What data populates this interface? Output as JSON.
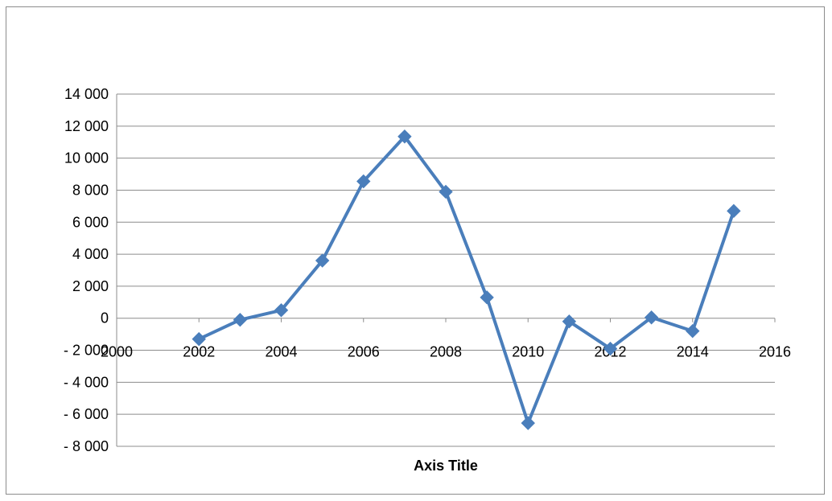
{
  "chart_data": {
    "type": "line",
    "title": "",
    "xlabel": "Axis Title",
    "ylabel": "",
    "xlim": [
      2000,
      2016
    ],
    "ylim": [
      -8000,
      14000
    ],
    "x_ticks": [
      2000,
      2002,
      2004,
      2006,
      2008,
      2010,
      2012,
      2014,
      2016
    ],
    "x_tick_labels": [
      "2000",
      "2002",
      "2004",
      "2006",
      "2008",
      "2010",
      "2012",
      "2014",
      "2016"
    ],
    "y_ticks": [
      -8000,
      -6000,
      -4000,
      -2000,
      0,
      2000,
      4000,
      6000,
      8000,
      10000,
      12000,
      14000
    ],
    "y_tick_labels": [
      "- 8 000",
      "- 6 000",
      "- 4 000",
      "- 2 000",
      "0",
      "2 000",
      "4 000",
      "6 000",
      "8 000",
      "10 000",
      "12 000",
      "14 000"
    ],
    "grid": true,
    "legend": "none",
    "series": [
      {
        "color": "#4a7ebb",
        "marker": "diamond",
        "x": [
          2002,
          2003,
          2004,
          2005,
          2006,
          2007,
          2008,
          2009,
          2010,
          2011,
          2012,
          2013,
          2014,
          2015
        ],
        "y": [
          -1300,
          -100,
          500,
          3600,
          8550,
          11350,
          7900,
          1300,
          -6550,
          -200,
          -1900,
          50,
          -800,
          6700
        ]
      }
    ]
  }
}
